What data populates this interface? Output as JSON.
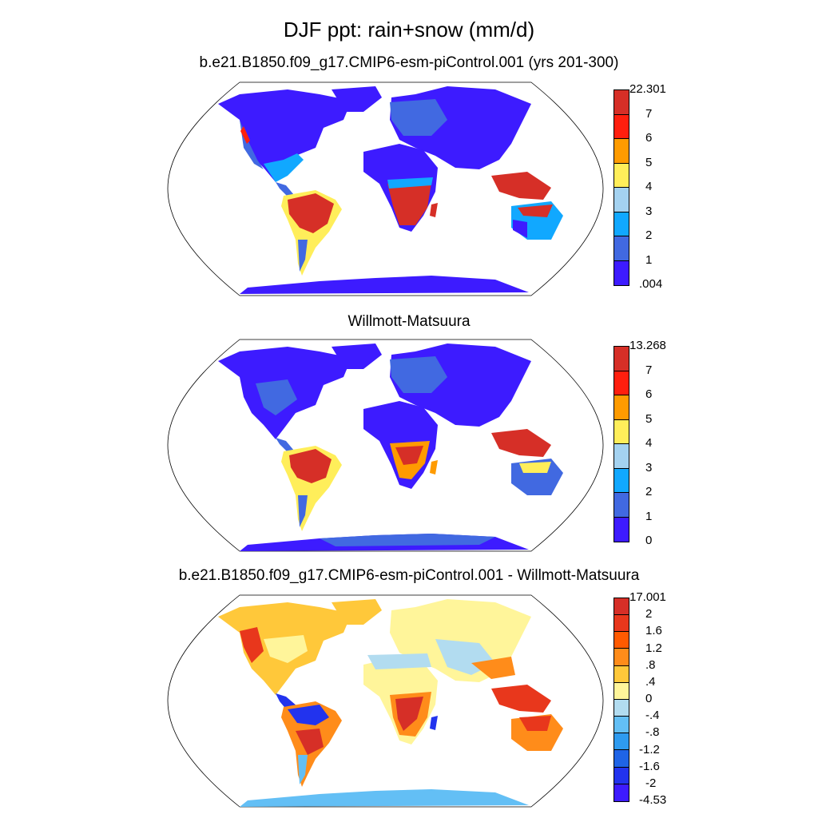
{
  "title": "DJF ppt: rain+snow (mm/d)",
  "panels": [
    {
      "title": "b.e21.B1850.f09_g17.CMIP6-esm-piControl.001 (yrs 201-300)",
      "colorbar": {
        "labels": [
          "22.301",
          "7",
          "6",
          "5",
          "4",
          "3",
          "2",
          "1",
          ".004"
        ],
        "colors": [
          "#d62f27",
          "#ff1f0e",
          "#ff9b00",
          "#ffee5a",
          "#a4d2f0",
          "#11a8ff",
          "#4169e1",
          "#3d1bff"
        ]
      }
    },
    {
      "title": "Willmott-Matsuura",
      "colorbar": {
        "labels": [
          "13.268",
          "7",
          "6",
          "5",
          "4",
          "3",
          "2",
          "1",
          "0"
        ],
        "colors": [
          "#d62f27",
          "#ff1f0e",
          "#ff9b00",
          "#ffee5a",
          "#a4d2f0",
          "#11a8ff",
          "#4169e1",
          "#3d1bff"
        ]
      }
    },
    {
      "title": "b.e21.B1850.f09_g17.CMIP6-esm-piControl.001 - Willmott-Matsuura",
      "colorbar": {
        "labels": [
          "17.001",
          "2",
          "1.6",
          "1.2",
          ".8",
          ".4",
          "0",
          "-.4",
          "-.8",
          "-1.2",
          "-1.6",
          "-2",
          "-4.53"
        ],
        "colors": [
          "#d62f27",
          "#e8371c",
          "#ff5a00",
          "#ff8c1a",
          "#ffc83a",
          "#fff59a",
          "#b2dcf0",
          "#63bff5",
          "#2e9bf0",
          "#1f64e6",
          "#2233ee",
          "#3d1bff"
        ]
      }
    }
  ]
}
